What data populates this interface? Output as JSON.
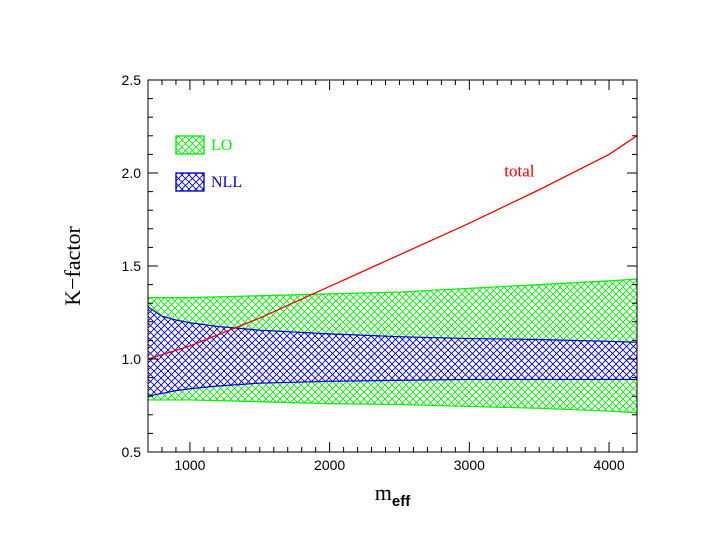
{
  "chart_data": {
    "type": "area",
    "xlabel": "m",
    "xlabel_sub": "eff",
    "ylabel": "K−factor",
    "xlim": [
      700,
      4200
    ],
    "ylim": [
      0.5,
      2.5
    ],
    "xticks": [
      1000,
      2000,
      3000,
      4000
    ],
    "xtick_labels": [
      "1000",
      "2000",
      "3000",
      "4000"
    ],
    "yticks": [
      0.5,
      1.0,
      1.5,
      2.0,
      2.5
    ],
    "ytick_labels": [
      "0.5",
      "1.0",
      "1.5",
      "2.0",
      "2.5"
    ],
    "grid": false,
    "legend_placement": "top-left",
    "series": [
      {
        "name": "LO",
        "kind": "band",
        "color": "#00ee00",
        "x": [
          700,
          1000,
          1500,
          2000,
          2500,
          3000,
          3500,
          4000,
          4200
        ],
        "upper": [
          1.33,
          1.33,
          1.34,
          1.35,
          1.36,
          1.38,
          1.4,
          1.42,
          1.43
        ],
        "lower": [
          0.78,
          0.78,
          0.77,
          0.76,
          0.755,
          0.745,
          0.735,
          0.72,
          0.71
        ]
      },
      {
        "name": "NLL",
        "kind": "band",
        "color": "#0000cc",
        "x": [
          700,
          800,
          900,
          1000,
          1200,
          1500,
          2000,
          2500,
          3000,
          3500,
          4000,
          4200
        ],
        "upper": [
          1.28,
          1.23,
          1.21,
          1.195,
          1.175,
          1.155,
          1.135,
          1.12,
          1.11,
          1.105,
          1.095,
          1.09
        ],
        "lower": [
          0.8,
          0.815,
          0.83,
          0.84,
          0.855,
          0.87,
          0.88,
          0.885,
          0.89,
          0.89,
          0.89,
          0.89
        ]
      },
      {
        "name": "total",
        "kind": "line",
        "color": "#ee0000",
        "x": [
          700,
          1000,
          1500,
          2000,
          2500,
          3000,
          3500,
          4000,
          4200
        ],
        "values": [
          1.0,
          1.07,
          1.22,
          1.39,
          1.56,
          1.73,
          1.91,
          2.1,
          2.2
        ]
      }
    ],
    "legend": [
      {
        "label": "LO",
        "color": "#00ee00"
      },
      {
        "label": "NLL",
        "color": "#0000cc"
      }
    ],
    "annotation": {
      "text": "total",
      "color": "#ee0000",
      "x": 3250,
      "y": 1.98
    }
  }
}
